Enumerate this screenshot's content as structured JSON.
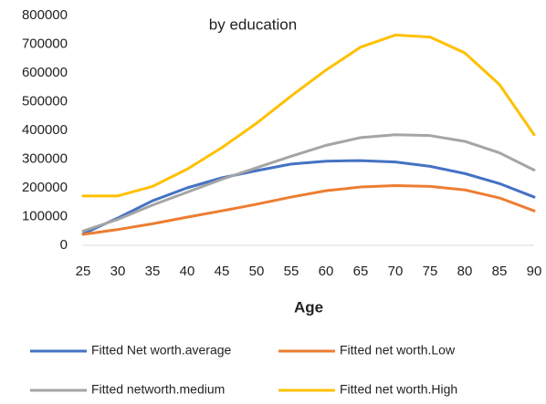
{
  "chart_data": {
    "type": "line",
    "title": "by education",
    "x_label": "Age",
    "x": [
      25,
      30,
      35,
      40,
      45,
      50,
      55,
      60,
      65,
      70,
      75,
      80,
      85,
      90
    ],
    "series": [
      {
        "name": "Fitted Net worth.average",
        "color": "#4472c4",
        "values": [
          40000,
          95000,
          155000,
          200000,
          235000,
          260000,
          283000,
          293000,
          295000,
          290000,
          275000,
          250000,
          215000,
          168000
        ]
      },
      {
        "name": "Fitted net worth.Low",
        "color": "#ed7d31",
        "values": [
          38000,
          55000,
          75000,
          98000,
          120000,
          143000,
          168000,
          190000,
          203000,
          208000,
          205000,
          193000,
          165000,
          120000
        ]
      },
      {
        "name": "Fitted networth.medium",
        "color": "#a5a5a5",
        "values": [
          50000,
          90000,
          140000,
          185000,
          230000,
          270000,
          310000,
          348000,
          375000,
          385000,
          382000,
          362000,
          322000,
          262000
        ]
      },
      {
        "name": "Fitted net worth.High",
        "color": "#ffc000",
        "values": [
          172000,
          172000,
          205000,
          265000,
          340000,
          425000,
          520000,
          610000,
          690000,
          732000,
          725000,
          670000,
          560000,
          385000
        ]
      }
    ],
    "xlim": [
      25,
      90
    ],
    "xticks": [
      25,
      30,
      35,
      40,
      45,
      50,
      55,
      60,
      65,
      70,
      75,
      80,
      85,
      90
    ],
    "ylim": [
      0,
      800000
    ],
    "yticks": [
      0,
      100000,
      200000,
      300000,
      400000,
      500000,
      600000,
      700000,
      800000
    ],
    "grid": false,
    "legend": "bottom"
  }
}
